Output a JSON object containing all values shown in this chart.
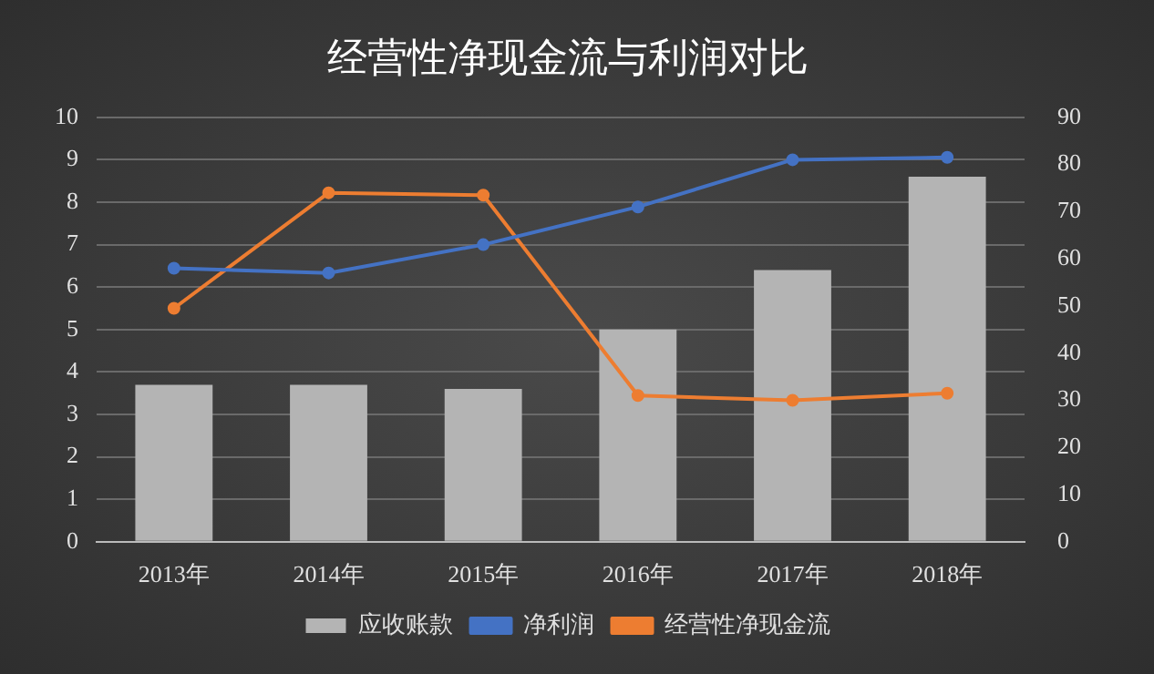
{
  "chart_data": {
    "type": "bar",
    "title": "经营性净现金流与利润对比",
    "categories": [
      "2013年",
      "2014年",
      "2015年",
      "2016年",
      "2017年",
      "2018年"
    ],
    "series": [
      {
        "name": "应收账款",
        "color": "#b4b4b4",
        "values": [
          3.7,
          3.7,
          3.6,
          5.0,
          6.4,
          8.6
        ]
      },
      {
        "name": "净利润",
        "type": "line",
        "axis": "y2",
        "color": "#4472c4",
        "values": [
          58,
          57,
          63,
          71,
          81,
          81.5
        ]
      },
      {
        "name": "经营性净现金流",
        "type": "line",
        "axis": "y2",
        "color": "#ed7d31",
        "values": [
          49.5,
          74,
          73.5,
          31,
          30,
          31.5
        ]
      }
    ],
    "ylim": [
      0,
      10
    ],
    "yticks": [
      0,
      1,
      2,
      3,
      4,
      5,
      6,
      7,
      8,
      9,
      10
    ],
    "y2lim": [
      0,
      90
    ],
    "y2ticks": [
      0,
      10,
      20,
      30,
      40,
      50,
      60,
      70,
      80,
      90
    ],
    "grid": "y",
    "legend": "bottom",
    "marker": "circle"
  }
}
